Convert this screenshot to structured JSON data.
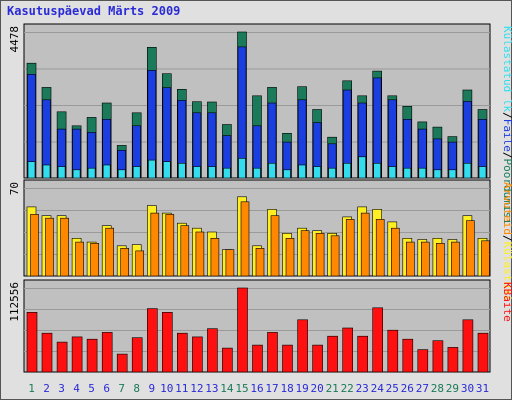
{
  "title": "Kasutuspäevad Märts 2009",
  "colors": {
    "background": "#e0e0e0",
    "plot_background": "#c0c0c0",
    "grid": "#9a9a9a",
    "visits": "#1a7a5a",
    "pages": "#1a3ee0",
    "files": "#33ddee",
    "hits": "#ffee22",
    "unique": "#ff8800",
    "kbytes": "#ff1010",
    "weekend_label": "#1a7a5a",
    "weekday_label": "#2b2bd6",
    "title": "#2b2bd6"
  },
  "chart_data": [
    {
      "type": "bar",
      "panel": "top",
      "max_label": "4478",
      "ylim": [
        0,
        4478
      ],
      "grid": true,
      "categories": [
        "1",
        "2",
        "3",
        "4",
        "5",
        "6",
        "7",
        "8",
        "9",
        "10",
        "11",
        "12",
        "13",
        "14",
        "15",
        "16",
        "17",
        "18",
        "19",
        "20",
        "21",
        "22",
        "23",
        "24",
        "25",
        "26",
        "27",
        "28",
        "29",
        "30",
        "31"
      ],
      "weekend_days": [
        "1",
        "7",
        "8",
        "14",
        "15",
        "21",
        "22",
        "28",
        "29"
      ],
      "legend": {
        "placement": "right-vertical",
        "entries": [
          "Pöördumisi",
          "/",
          "Faile",
          "/",
          "Külastatud lk"
        ]
      },
      "series": [
        {
          "name": "Pöördumisi",
          "values": [
            3520,
            2780,
            2030,
            1600,
            1860,
            2300,
            1000,
            2000,
            4010,
            3200,
            2720,
            2340,
            2330,
            1640,
            4500,
            2520,
            2780,
            1370,
            2800,
            2100,
            1250,
            2980,
            2520,
            3280,
            2520,
            2200,
            1720,
            1560,
            1270,
            2700,
            2100
          ]
        },
        {
          "name": "Faile",
          "values": [
            3180,
            2400,
            1500,
            1500,
            1400,
            1800,
            850,
            1600,
            3300,
            2770,
            2380,
            2000,
            2000,
            1300,
            4020,
            1600,
            2300,
            1100,
            2400,
            1700,
            1050,
            2700,
            2300,
            3070,
            2400,
            1800,
            1500,
            1200,
            1100,
            2350,
            1800
          ]
        },
        {
          "name": "Külastatud lk",
          "values": [
            500,
            400,
            350,
            250,
            300,
            400,
            250,
            350,
            550,
            500,
            450,
            350,
            350,
            300,
            600,
            300,
            450,
            250,
            400,
            350,
            300,
            450,
            650,
            450,
            350,
            300,
            300,
            250,
            250,
            450,
            350
          ]
        }
      ]
    },
    {
      "type": "bar",
      "panel": "middle",
      "max_label": "70",
      "ylim": [
        0,
        70
      ],
      "grid": true,
      "legend": {
        "placement": "right-vertical",
        "entries": [
          "Külastusi",
          "/",
          "Arvuteid"
        ]
      },
      "series": [
        {
          "name": "Külastusi",
          "values": [
            55,
            48,
            48,
            30,
            27,
            40,
            24,
            25,
            56,
            50,
            42,
            38,
            35,
            21,
            63,
            24,
            53,
            34,
            38,
            36,
            34,
            47,
            55,
            53,
            43,
            30,
            29,
            30,
            29,
            48,
            30
          ]
        },
        {
          "name": "Arvuteid",
          "values": [
            49,
            46,
            46,
            27,
            26,
            38,
            22,
            20,
            50,
            49,
            40,
            35,
            30,
            21,
            59,
            22,
            48,
            30,
            36,
            34,
            32,
            45,
            50,
            45,
            38,
            27,
            27,
            26,
            27,
            44,
            28
          ]
        }
      ]
    },
    {
      "type": "bar",
      "panel": "bottom",
      "max_label": "112556",
      "ylim": [
        0,
        112556
      ],
      "grid": true,
      "legend": {
        "placement": "right-vertical",
        "entries": [
          "KBaite"
        ]
      },
      "series": [
        {
          "name": "KBaite",
          "values": [
            80000,
            52000,
            40000,
            47000,
            44000,
            53000,
            24000,
            46000,
            85000,
            80000,
            52000,
            47000,
            58000,
            32000,
            113000,
            36000,
            53000,
            36000,
            70000,
            36000,
            48000,
            59000,
            48000,
            86000,
            56000,
            44000,
            30000,
            42000,
            33000,
            70000,
            52000
          ]
        }
      ]
    }
  ]
}
